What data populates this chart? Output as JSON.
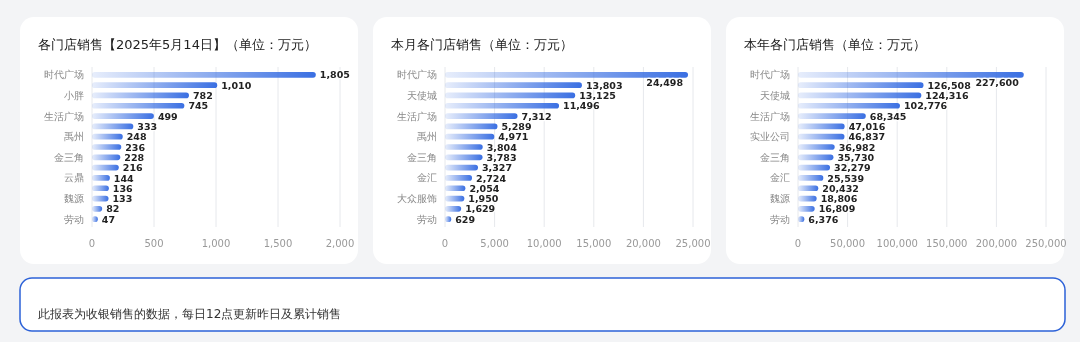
{
  "chart_data": [
    {
      "type": "bar",
      "orientation": "horizontal",
      "title": "各门店销售【2025年5月14日】（单位：万元）",
      "categories": [
        "时代广场",
        null,
        "小胖",
        null,
        "生活广场",
        null,
        "禹州",
        null,
        "金三角",
        null,
        "云鼎",
        null,
        "魏源",
        null,
        "劳动"
      ],
      "values": [
        1805,
        1010,
        782,
        745,
        499,
        333,
        248,
        236,
        228,
        216,
        144,
        136,
        133,
        82,
        47
      ],
      "value_labels": [
        "1,805",
        "1,010",
        "782",
        "745",
        "499",
        "333",
        "248",
        "236",
        "228",
        "216",
        "144",
        "136",
        "133",
        "82",
        "47"
      ],
      "color": "#3a6fe2",
      "xlim": [
        0,
        2000
      ],
      "xticks": [
        {
          "value": 0,
          "label": "0"
        },
        {
          "value": 500,
          "label": "500"
        },
        {
          "value": 1000,
          "label": "1,000"
        },
        {
          "value": 1500,
          "label": "1,500"
        },
        {
          "value": 2000,
          "label": "2,000"
        }
      ],
      "grid": "x"
    },
    {
      "type": "bar",
      "orientation": "horizontal",
      "title": "本月各门店销售（单位：万元）",
      "categories": [
        "时代广场",
        null,
        "天使城",
        null,
        "生活广场",
        null,
        "禹州",
        null,
        "金三角",
        null,
        "金汇",
        null,
        "大众服饰",
        null,
        "劳动"
      ],
      "values": [
        24498,
        13803,
        13125,
        11496,
        7312,
        5289,
        4971,
        3804,
        3783,
        3327,
        2724,
        2054,
        1950,
        1629,
        629
      ],
      "value_labels": [
        "24,498",
        "13,803",
        "13,125",
        "11,496",
        "7,312",
        "5,289",
        "4,971",
        "3,804",
        "3,783",
        "3,327",
        "2,724",
        "2,054",
        "1,950",
        "1,629",
        "629"
      ],
      "color": "#3a6fe2",
      "xlim": [
        0,
        25000
      ],
      "xticks": [
        {
          "value": 0,
          "label": "0"
        },
        {
          "value": 5000,
          "label": "5,000"
        },
        {
          "value": 10000,
          "label": "10,000"
        },
        {
          "value": 15000,
          "label": "15,000"
        },
        {
          "value": 20000,
          "label": "20,000"
        },
        {
          "value": 25000,
          "label": "25,000"
        }
      ],
      "grid": "x"
    },
    {
      "type": "bar",
      "orientation": "horizontal",
      "title": "本年各门店销售（单位：万元）",
      "categories": [
        "时代广场",
        null,
        "天使城",
        null,
        "生活广场",
        null,
        "实业公司",
        null,
        "金三角",
        null,
        "金汇",
        null,
        "魏源",
        null,
        "劳动"
      ],
      "values": [
        227600,
        126508,
        124316,
        102776,
        68345,
        47016,
        46837,
        36982,
        35730,
        32279,
        25539,
        20432,
        18806,
        16809,
        6376
      ],
      "value_labels": [
        "227,600",
        "126,508",
        "124,316",
        "102,776",
        "68,345",
        "47,016",
        "46,837",
        "36,982",
        "35,730",
        "32,279",
        "25,539",
        "20,432",
        "18,806",
        "16,809",
        "6,376"
      ],
      "color": "#3a6fe2",
      "xlim": [
        0,
        250000
      ],
      "xticks": [
        {
          "value": 0,
          "label": "0"
        },
        {
          "value": 50000,
          "label": "50,000"
        },
        {
          "value": 100000,
          "label": "100,000"
        },
        {
          "value": 150000,
          "label": "150,000"
        },
        {
          "value": 200000,
          "label": "200,000"
        },
        {
          "value": 250000,
          "label": "250,000"
        }
      ],
      "grid": "x"
    },
    {
      "type": "other",
      "annotations": [
        "此报表为收银销售的数据，每日12点更新昨日及累计销售"
      ]
    }
  ]
}
